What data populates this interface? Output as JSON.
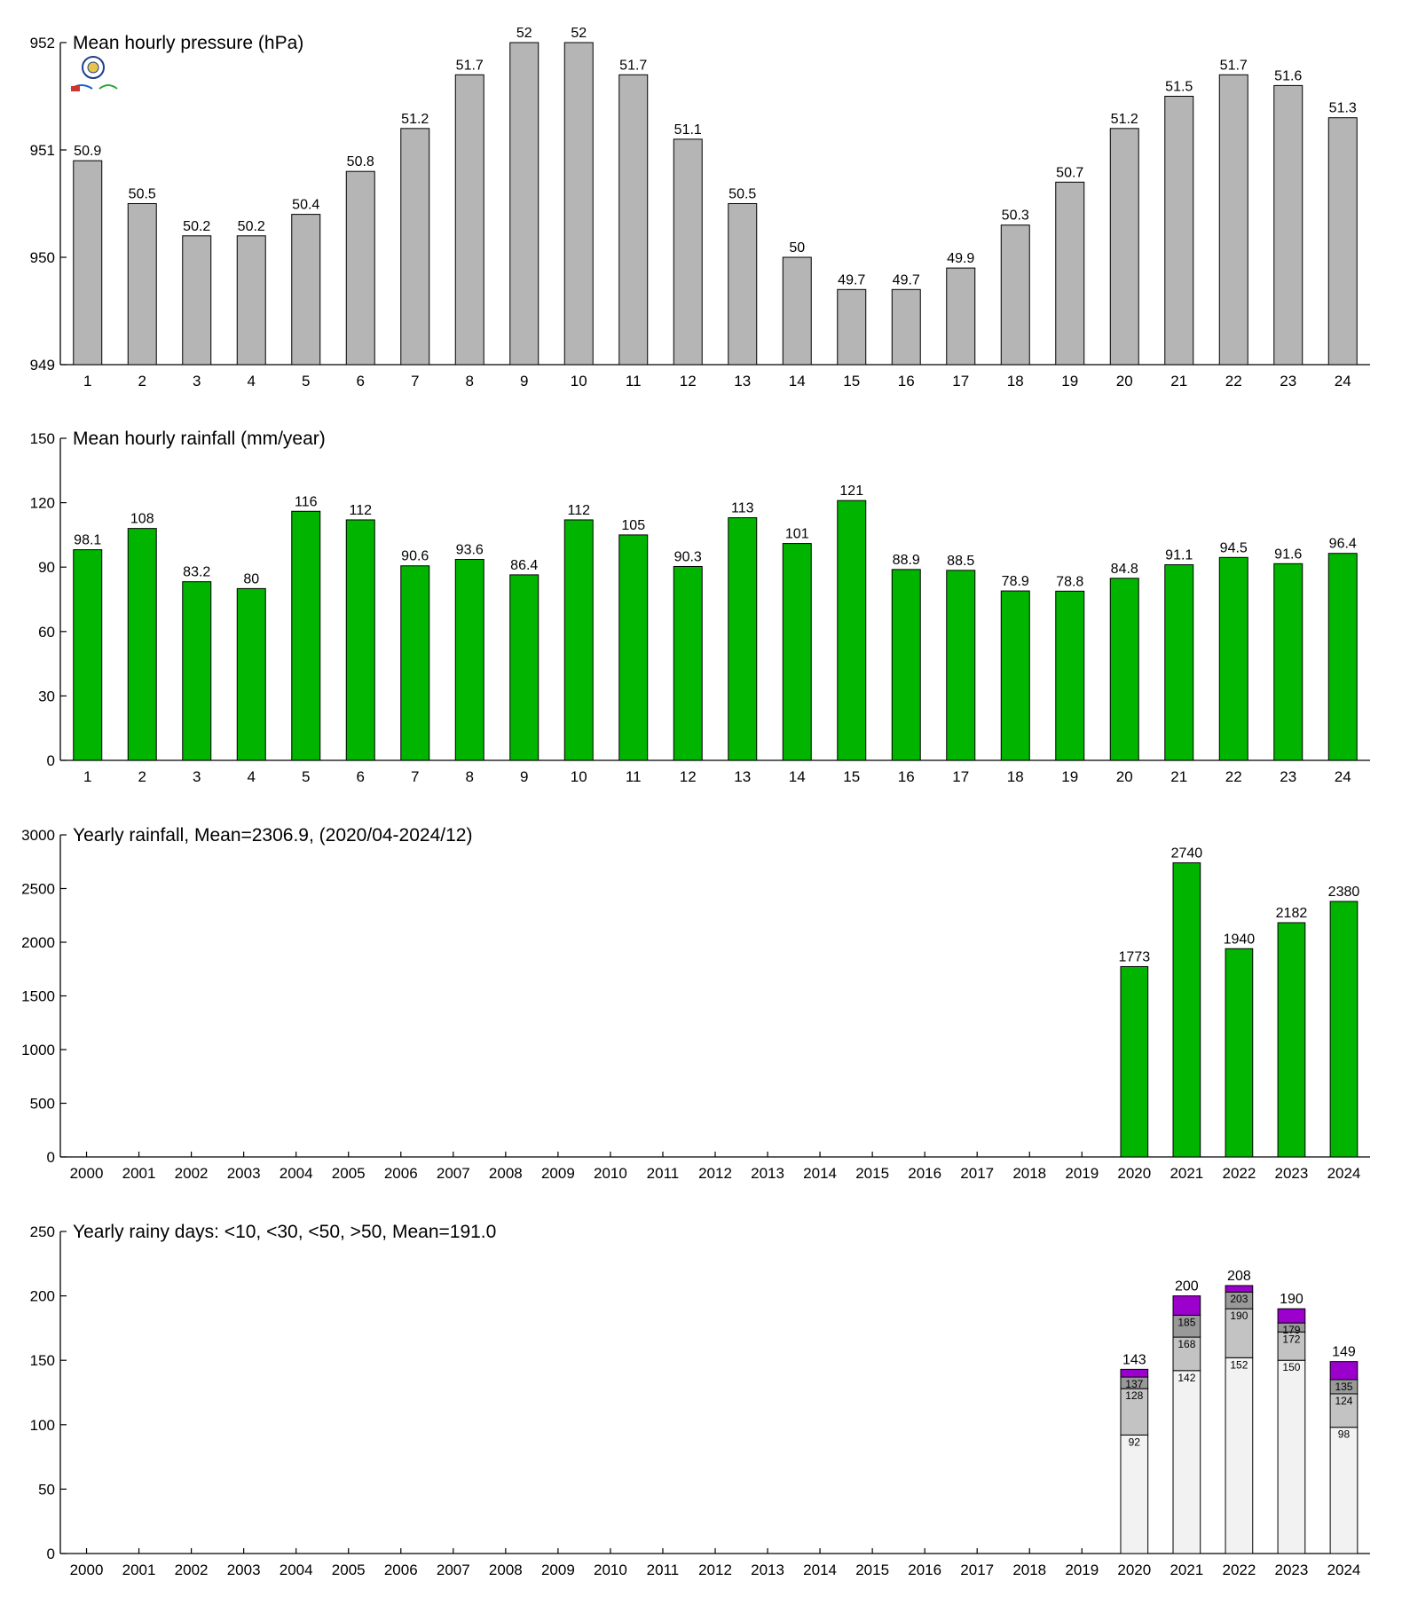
{
  "chart_data": [
    {
      "type": "bar",
      "title": "Mean hourly pressure (hPa)",
      "xlabel": "",
      "ylabel": "",
      "ylim": [
        949,
        952
      ],
      "yticks": [
        "949",
        "950",
        "951",
        "952"
      ],
      "categories": [
        "1",
        "2",
        "3",
        "4",
        "5",
        "6",
        "7",
        "8",
        "9",
        "10",
        "11",
        "12",
        "13",
        "14",
        "15",
        "16",
        "17",
        "18",
        "19",
        "20",
        "21",
        "22",
        "23",
        "24"
      ],
      "values": [
        950.9,
        950.5,
        950.2,
        950.2,
        950.4,
        950.8,
        951.2,
        951.7,
        952,
        952,
        951.7,
        951.1,
        950.5,
        950,
        949.7,
        949.7,
        949.9,
        950.3,
        950.7,
        951.2,
        951.5,
        951.7,
        951.6,
        951.3
      ],
      "labels": [
        "50.9",
        "50.5",
        "50.2",
        "50.2",
        "50.4",
        "50.8",
        "51.2",
        "51.7",
        "52",
        "52",
        "51.7",
        "51.1",
        "50.5",
        "50",
        "49.7",
        "49.7",
        "49.9",
        "50.3",
        "50.7",
        "51.2",
        "51.5",
        "51.7",
        "51.6",
        "51.3"
      ],
      "color": "#b5b5b5",
      "grid": false,
      "logo": true
    },
    {
      "type": "bar",
      "title": "Mean hourly rainfall (mm/year)",
      "xlabel": "",
      "ylabel": "",
      "ylim": [
        0,
        150
      ],
      "yticks": [
        "0",
        "30",
        "60",
        "90",
        "120",
        "150"
      ],
      "categories": [
        "1",
        "2",
        "3",
        "4",
        "5",
        "6",
        "7",
        "8",
        "9",
        "10",
        "11",
        "12",
        "13",
        "14",
        "15",
        "16",
        "17",
        "18",
        "19",
        "20",
        "21",
        "22",
        "23",
        "24"
      ],
      "values": [
        98.1,
        108,
        83.2,
        80,
        116,
        112,
        90.6,
        93.6,
        86.4,
        112,
        105,
        90.3,
        113,
        101,
        121,
        88.9,
        88.5,
        78.9,
        78.8,
        84.8,
        91.1,
        94.5,
        91.6,
        96.4
      ],
      "labels": [
        "98.1",
        "108",
        "83.2",
        "80",
        "116",
        "112",
        "90.6",
        "93.6",
        "86.4",
        "112",
        "105",
        "90.3",
        "113",
        "101",
        "121",
        "88.9",
        "88.5",
        "78.9",
        "78.8",
        "84.8",
        "91.1",
        "94.5",
        "91.6",
        "96.4"
      ],
      "color": "#00b400",
      "grid": false
    },
    {
      "type": "bar",
      "title": "Yearly rainfall, Mean=2306.9, (2020/04-2024/12)",
      "xlabel": "",
      "ylabel": "",
      "ylim": [
        0,
        3000
      ],
      "yticks": [
        "0",
        "500",
        "1000",
        "1500",
        "2000",
        "2500",
        "3000"
      ],
      "categories": [
        "2000",
        "2001",
        "2002",
        "2003",
        "2004",
        "2005",
        "2006",
        "2007",
        "2008",
        "2009",
        "2010",
        "2011",
        "2012",
        "2013",
        "2014",
        "2015",
        "2016",
        "2017",
        "2018",
        "2019",
        "2020",
        "2021",
        "2022",
        "2023",
        "2024"
      ],
      "values": [
        null,
        null,
        null,
        null,
        null,
        null,
        null,
        null,
        null,
        null,
        null,
        null,
        null,
        null,
        null,
        null,
        null,
        null,
        null,
        null,
        1773,
        2740,
        1940,
        2182,
        2380
      ],
      "labels": [
        "",
        "",
        "",
        "",
        "",
        "",
        "",
        "",
        "",
        "",
        "",
        "",
        "",
        "",
        "",
        "",
        "",
        "",
        "",
        "",
        "1773",
        "2740",
        "1940",
        "2182",
        "2380"
      ],
      "color": "#00b400",
      "grid": false
    },
    {
      "type": "stacked-bar",
      "title": "Yearly rainy days: <10, <30, <50, >50, Mean=191.0",
      "xlabel": "",
      "ylabel": "",
      "ylim": [
        0,
        250
      ],
      "yticks": [
        "0",
        "50",
        "100",
        "150",
        "200",
        "250"
      ],
      "categories": [
        "2000",
        "2001",
        "2002",
        "2003",
        "2004",
        "2005",
        "2006",
        "2007",
        "2008",
        "2009",
        "2010",
        "2011",
        "2012",
        "2013",
        "2014",
        "2015",
        "2016",
        "2017",
        "2018",
        "2019",
        "2020",
        "2021",
        "2022",
        "2023",
        "2024"
      ],
      "cumulative": [
        {
          "year": "2020",
          "levels": [
            92,
            128,
            137,
            143
          ],
          "labels": [
            "92",
            "128",
            "137",
            "143"
          ]
        },
        {
          "year": "2021",
          "levels": [
            142,
            168,
            185,
            200
          ],
          "labels": [
            "142",
            "168",
            "185",
            "200"
          ]
        },
        {
          "year": "2022",
          "levels": [
            152,
            190,
            203,
            208
          ],
          "labels": [
            "152",
            "190",
            "203",
            "208"
          ]
        },
        {
          "year": "2023",
          "levels": [
            150,
            172,
            179,
            190
          ],
          "labels": [
            "150",
            "172",
            "179",
            "190"
          ]
        },
        {
          "year": "2024",
          "levels": [
            98,
            124,
            135,
            149
          ],
          "labels": [
            "98",
            "124",
            "135",
            "149"
          ]
        }
      ],
      "colors": [
        "#f2f2f2",
        "#c3c3c3",
        "#999999",
        "#9b00cc"
      ],
      "grid": false
    }
  ]
}
